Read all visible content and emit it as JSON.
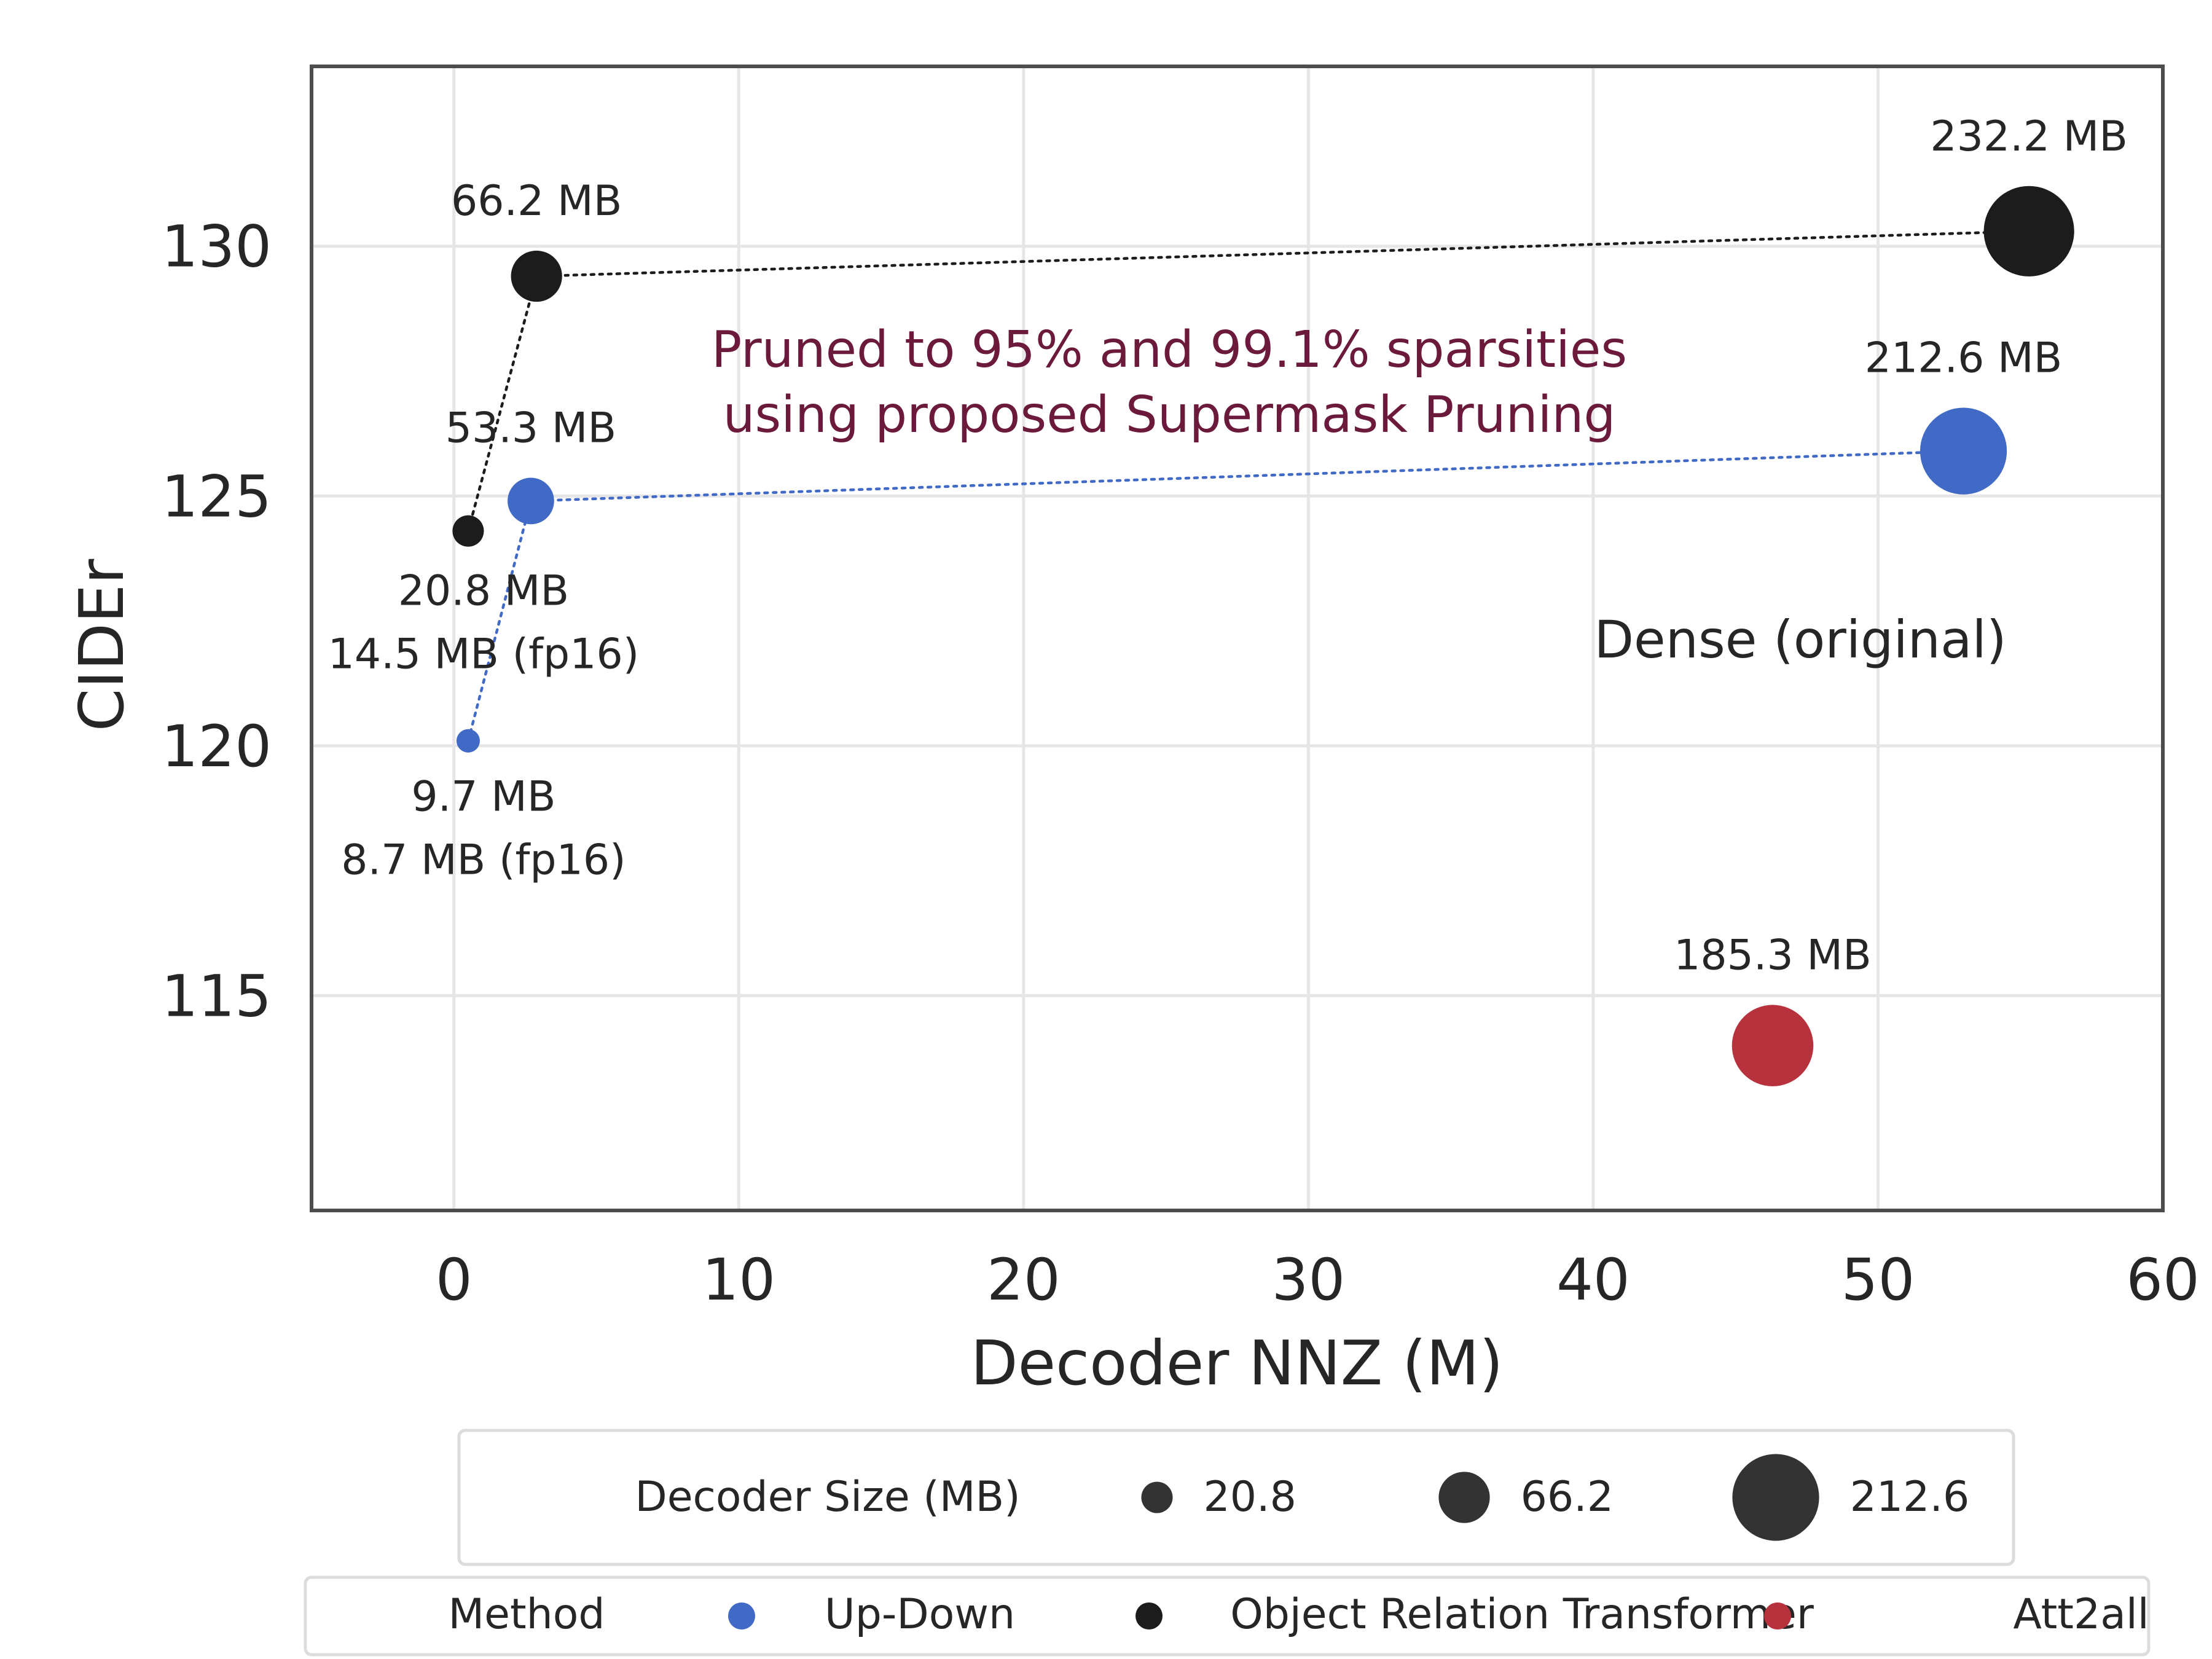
{
  "chart_data": {
    "type": "scatter",
    "xlabel": "Decoder NNZ (M)",
    "ylabel": "CIDEr",
    "xlim": [
      -5,
      60
    ],
    "ylim": [
      110.7,
      133.6
    ],
    "x_ticks": [
      "0",
      "10",
      "20",
      "30",
      "40",
      "50",
      "60"
    ],
    "y_ticks": [
      "115",
      "120",
      "125",
      "130"
    ],
    "grid": true,
    "series": [
      {
        "name": "Up-Down",
        "color": "#4169c6",
        "connected": true,
        "points": [
          {
            "x": 0.5,
            "y": 120.1,
            "size_mb": 9.7,
            "labels": [
              "9.7 MB",
              "8.7 MB (fp16)"
            ]
          },
          {
            "x": 2.7,
            "y": 124.9,
            "size_mb": 53.3,
            "labels": [
              "53.3 MB"
            ]
          },
          {
            "x": 53.0,
            "y": 125.9,
            "size_mb": 212.6,
            "labels": [
              "212.6 MB"
            ]
          }
        ]
      },
      {
        "name": "Object Relation Transformer",
        "color": "#1c1c1c",
        "connected": true,
        "points": [
          {
            "x": 0.5,
            "y": 124.3,
            "size_mb": 20.8,
            "labels": [
              "20.8 MB",
              "14.5 MB (fp16)"
            ]
          },
          {
            "x": 2.9,
            "y": 129.4,
            "size_mb": 66.2,
            "labels": [
              "66.2 MB"
            ]
          },
          {
            "x": 55.3,
            "y": 130.3,
            "size_mb": 232.2,
            "labels": [
              "232.2 MB"
            ]
          }
        ]
      },
      {
        "name": "Att2all",
        "color": "#b8323e",
        "connected": false,
        "points": [
          {
            "x": 46.3,
            "y": 114.0,
            "size_mb": 185.3,
            "labels": [
              "185.3 MB"
            ]
          }
        ]
      }
    ],
    "annotations": {
      "pruned_line1": "Pruned to 95% and 99.1% sparsities",
      "pruned_line2": "using proposed Supermask Pruning",
      "dense": "Dense (original)"
    },
    "legend_size": {
      "title": "Decoder Size (MB)",
      "entries": [
        {
          "label": "20.8",
          "size_mb": 20.8
        },
        {
          "label": "66.2",
          "size_mb": 66.2
        },
        {
          "label": "212.6",
          "size_mb": 212.6
        }
      ]
    },
    "legend_method": {
      "title": "Method",
      "entries": [
        {
          "label": "Up-Down",
          "color": "#4169c6"
        },
        {
          "label": "Object Relation Transformer",
          "color": "#1c1c1c"
        },
        {
          "label": "Att2all",
          "color": "#b8323e"
        }
      ]
    }
  }
}
